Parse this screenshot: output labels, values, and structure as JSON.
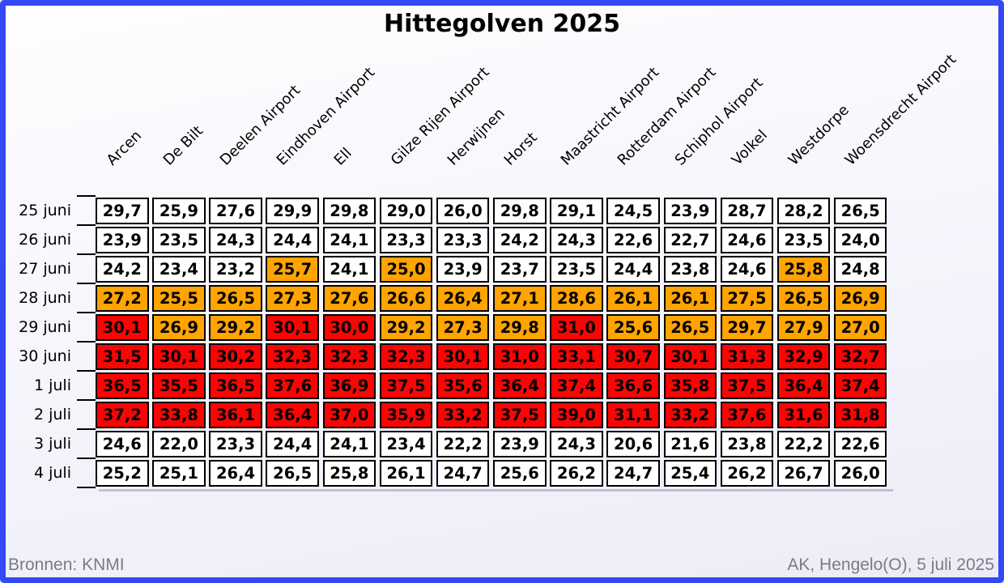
{
  "footer": {
    "source": "Bronnen: KNMI",
    "credit": "AK, Hengelo(O), 5 juli 2025"
  },
  "frame_color": "#3448f4",
  "chart_data": {
    "type": "heatmap",
    "title": "Hittegolven 2025",
    "decimal_separator": ",",
    "columns": [
      "Arcen",
      "De Bilt",
      "Deelen Airport",
      "Eindhoven Airport",
      "Ell",
      "Gilze Rijen Airport",
      "Herwijnen",
      "Horst",
      "Maastricht Airport",
      "Rotterdam Airport",
      "Schiphol Airport",
      "Volkel",
      "Westdorpe",
      "Woensdrecht Airport"
    ],
    "rows": [
      "25 juni",
      "26 juni",
      "27 juni",
      "28 juni",
      "29 juni",
      "30 juni",
      "1 juli",
      "2 juli",
      "3 juli",
      "4 juli"
    ],
    "values": [
      [
        29.7,
        25.9,
        27.6,
        29.9,
        29.8,
        29.0,
        26.0,
        29.8,
        29.1,
        24.5,
        23.9,
        28.7,
        28.2,
        26.5
      ],
      [
        23.9,
        23.5,
        24.3,
        24.4,
        24.1,
        23.3,
        23.3,
        24.2,
        24.3,
        22.6,
        22.7,
        24.6,
        23.5,
        24.0
      ],
      [
        24.2,
        23.4,
        23.2,
        25.7,
        24.1,
        25.0,
        23.9,
        23.7,
        23.5,
        24.4,
        23.8,
        24.6,
        25.8,
        24.8
      ],
      [
        27.2,
        25.5,
        26.5,
        27.3,
        27.6,
        26.6,
        26.4,
        27.1,
        28.6,
        26.1,
        26.1,
        27.5,
        26.5,
        26.9
      ],
      [
        30.1,
        26.9,
        29.2,
        30.1,
        30.0,
        29.2,
        27.3,
        29.8,
        31.0,
        25.6,
        26.5,
        29.7,
        27.9,
        27.0
      ],
      [
        31.5,
        30.1,
        30.2,
        32.3,
        32.3,
        32.3,
        30.1,
        31.0,
        33.1,
        30.7,
        30.1,
        31.3,
        32.9,
        32.7
      ],
      [
        36.5,
        35.5,
        36.5,
        37.6,
        36.9,
        37.5,
        35.6,
        36.4,
        37.4,
        36.6,
        35.8,
        37.5,
        36.4,
        37.4
      ],
      [
        37.2,
        33.8,
        36.1,
        36.4,
        37.0,
        35.9,
        33.2,
        37.5,
        39.0,
        31.1,
        33.2,
        37.6,
        31.6,
        31.8
      ],
      [
        24.6,
        22.0,
        23.3,
        24.4,
        24.1,
        23.4,
        22.2,
        23.9,
        24.3,
        20.6,
        21.6,
        23.8,
        22.2,
        22.6
      ],
      [
        25.2,
        25.1,
        26.4,
        26.5,
        25.8,
        26.1,
        24.7,
        25.6,
        26.2,
        24.7,
        25.4,
        26.2,
        26.7,
        26.0
      ]
    ],
    "cell_colors": [
      [
        "w",
        "w",
        "w",
        "w",
        "w",
        "w",
        "w",
        "w",
        "w",
        "w",
        "w",
        "w",
        "w",
        "w"
      ],
      [
        "w",
        "w",
        "w",
        "w",
        "w",
        "w",
        "w",
        "w",
        "w",
        "w",
        "w",
        "w",
        "w",
        "w"
      ],
      [
        "w",
        "w",
        "w",
        "o",
        "w",
        "o",
        "w",
        "w",
        "w",
        "w",
        "w",
        "w",
        "o",
        "w"
      ],
      [
        "o",
        "o",
        "o",
        "o",
        "o",
        "o",
        "o",
        "o",
        "o",
        "o",
        "o",
        "o",
        "o",
        "o"
      ],
      [
        "r",
        "o",
        "o",
        "r",
        "r",
        "o",
        "o",
        "o",
        "r",
        "o",
        "o",
        "o",
        "o",
        "o"
      ],
      [
        "r",
        "r",
        "r",
        "r",
        "r",
        "r",
        "r",
        "r",
        "r",
        "r",
        "r",
        "r",
        "r",
        "r"
      ],
      [
        "r",
        "r",
        "r",
        "r",
        "r",
        "r",
        "r",
        "r",
        "r",
        "r",
        "r",
        "r",
        "r",
        "r"
      ],
      [
        "r",
        "r",
        "r",
        "r",
        "r",
        "r",
        "r",
        "r",
        "r",
        "r",
        "r",
        "r",
        "r",
        "r"
      ],
      [
        "w",
        "w",
        "w",
        "w",
        "w",
        "w",
        "w",
        "w",
        "w",
        "w",
        "w",
        "w",
        "w",
        "w"
      ],
      [
        "w",
        "w",
        "w",
        "w",
        "w",
        "w",
        "w",
        "w",
        "w",
        "w",
        "w",
        "w",
        "w",
        "w"
      ]
    ],
    "palette": {
      "w": "#ffffff",
      "o": "#ffa400",
      "r": "#fb0404"
    },
    "layout_hints": {
      "grid": "separated cells with black borders",
      "row_labels": "left",
      "column_labels": "top rotated 45deg"
    }
  }
}
